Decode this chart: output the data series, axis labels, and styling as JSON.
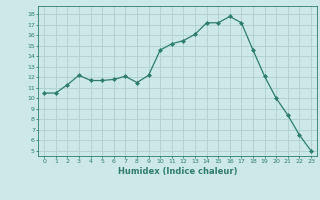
{
  "x": [
    0,
    1,
    2,
    3,
    4,
    5,
    6,
    7,
    8,
    9,
    10,
    11,
    12,
    13,
    14,
    15,
    16,
    17,
    18,
    19,
    20,
    21,
    22,
    23
  ],
  "y": [
    10.5,
    10.5,
    11.3,
    12.2,
    11.7,
    11.7,
    11.8,
    12.1,
    11.5,
    12.2,
    14.6,
    15.2,
    15.5,
    16.1,
    17.2,
    17.2,
    17.8,
    17.2,
    14.6,
    12.1,
    10.0,
    8.4,
    6.5,
    5.0
  ],
  "line_color": "#2d7d6e",
  "marker": "D",
  "marker_size": 2.0,
  "bg_color": "#cde8e8",
  "grid_color": "#afd0d0",
  "xlabel": "Humidex (Indice chaleur)",
  "ylabel_ticks": [
    5,
    6,
    7,
    8,
    9,
    10,
    11,
    12,
    13,
    14,
    15,
    16,
    17,
    18
  ],
  "ylim": [
    4.5,
    18.8
  ],
  "xlim": [
    -0.5,
    23.5
  ]
}
